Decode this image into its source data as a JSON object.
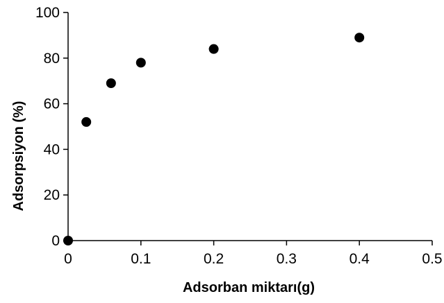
{
  "chart_data": {
    "type": "scatter",
    "title": "",
    "xlabel": "Adsorban miktarı(g)",
    "ylabel": "Adsorpsiyon (%)",
    "xlim": [
      0,
      0.5
    ],
    "ylim": [
      0,
      100
    ],
    "x_ticks": [
      0,
      0.1,
      0.2,
      0.3,
      0.4,
      0.5
    ],
    "x_tick_labels": [
      "0",
      "0.1",
      "0.2",
      "0.3",
      "0.4",
      "0.5"
    ],
    "y_ticks": [
      0,
      20,
      40,
      60,
      80,
      100
    ],
    "y_tick_labels": [
      "0",
      "20",
      "40",
      "60",
      "80",
      "100"
    ],
    "grid": false,
    "legend": false,
    "marker_color": "#000000",
    "series": [
      {
        "x": [
          0,
          0.025,
          0.059,
          0.1,
          0.2,
          0.4
        ],
        "y": [
          0,
          52,
          69,
          78,
          84,
          89
        ]
      }
    ]
  }
}
